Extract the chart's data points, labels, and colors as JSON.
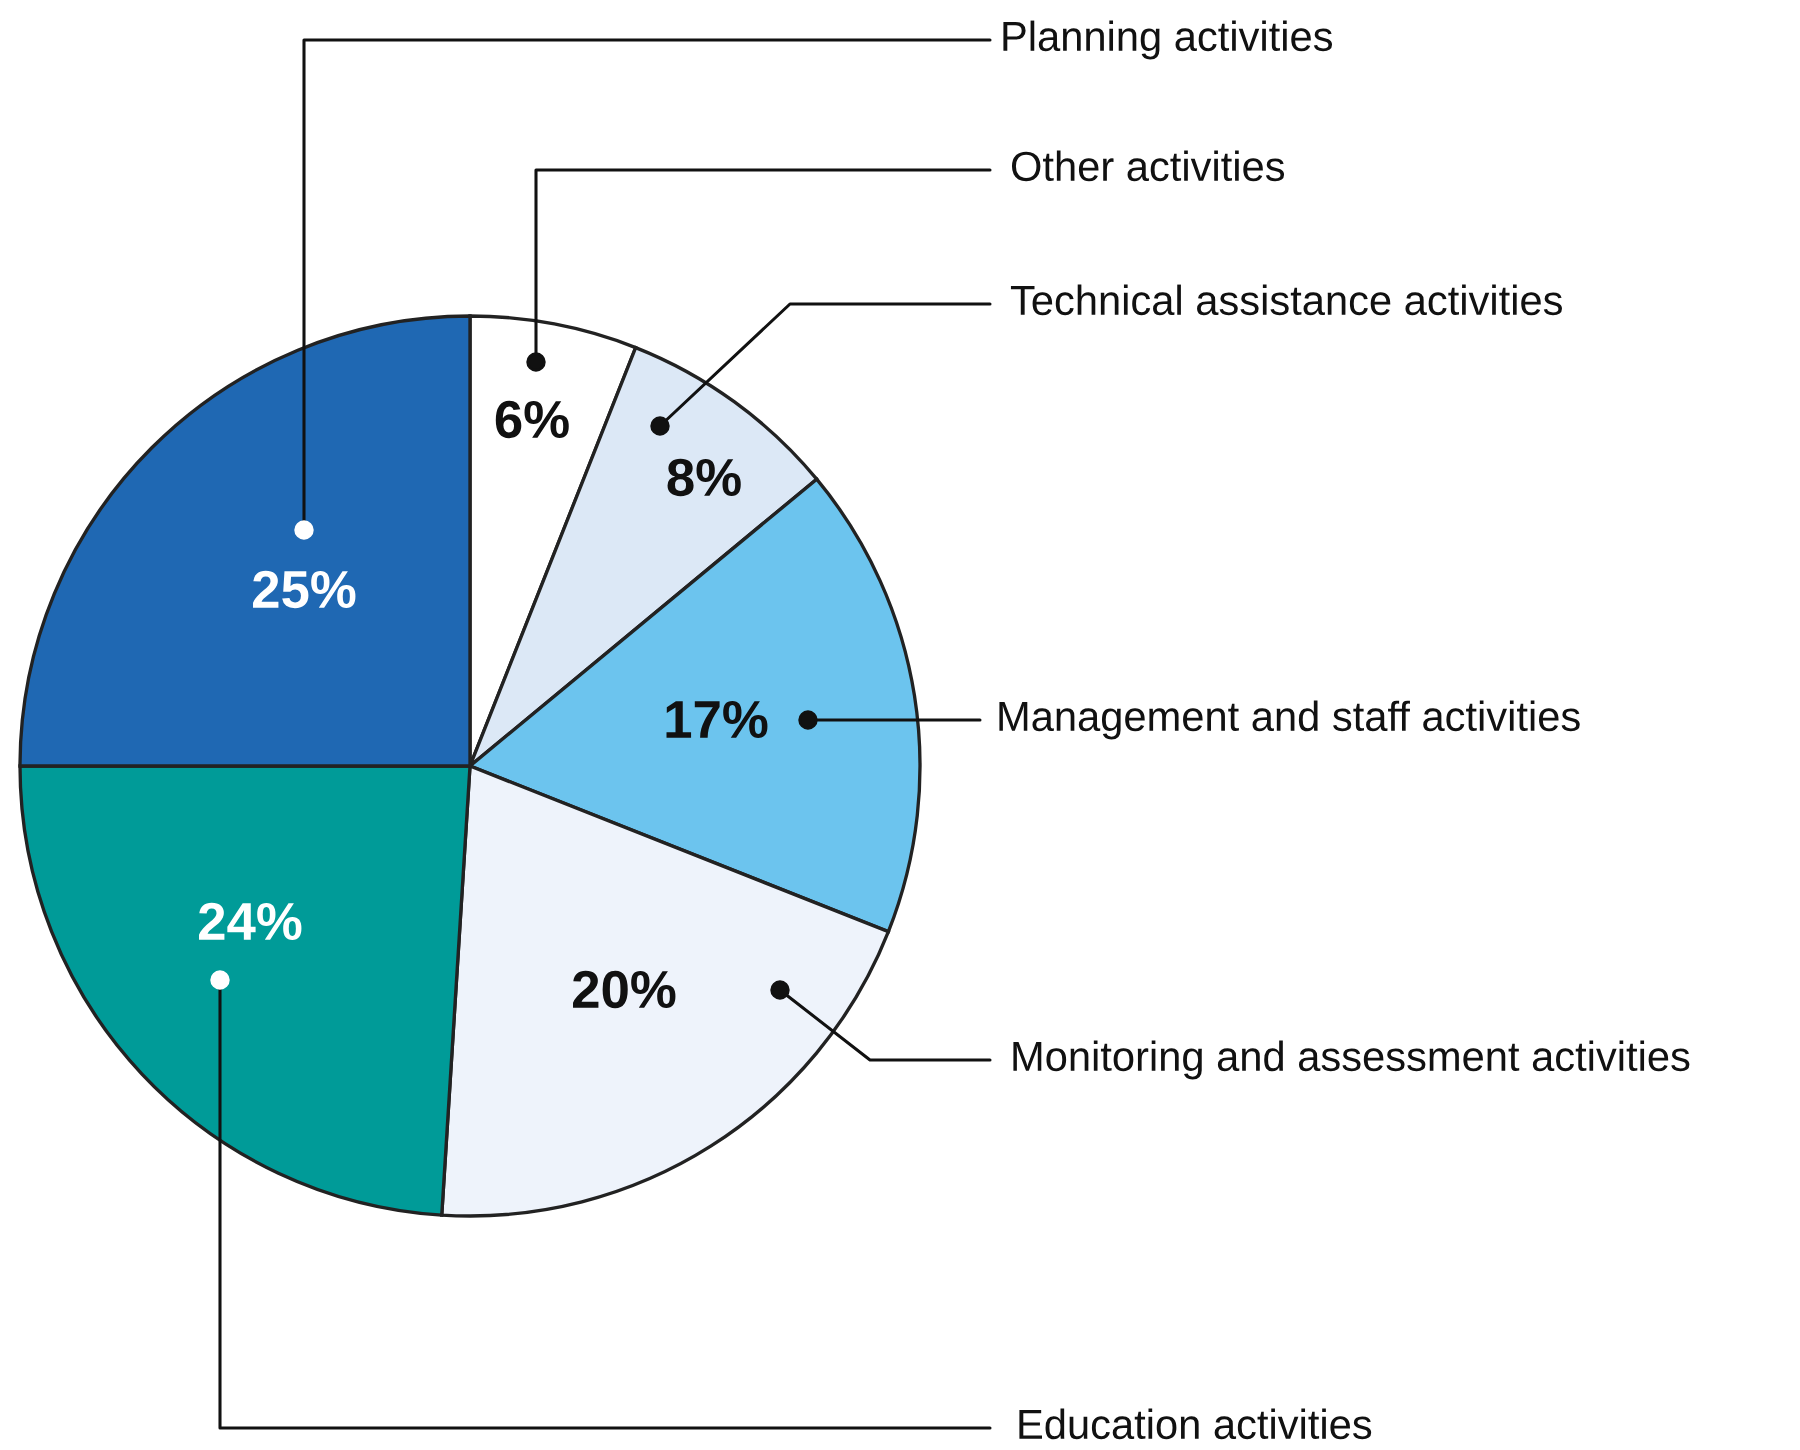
{
  "chart_data": {
    "type": "pie",
    "categories": [
      "Other activities",
      "Technical assistance activities",
      "Management and staff activities",
      "Monitoring and assessment activities",
      "Education activities",
      "Planning activities"
    ],
    "values": [
      6,
      8,
      17,
      20,
      24,
      25
    ],
    "colors": [
      "#ffffff",
      "#dce8f6",
      "#6cc4ee",
      "#eef3fb",
      "#009b98",
      "#1f68b3"
    ],
    "value_labels": [
      "6%",
      "8%",
      "17%",
      "20%",
      "24%",
      "25%"
    ],
    "legend": false
  }
}
